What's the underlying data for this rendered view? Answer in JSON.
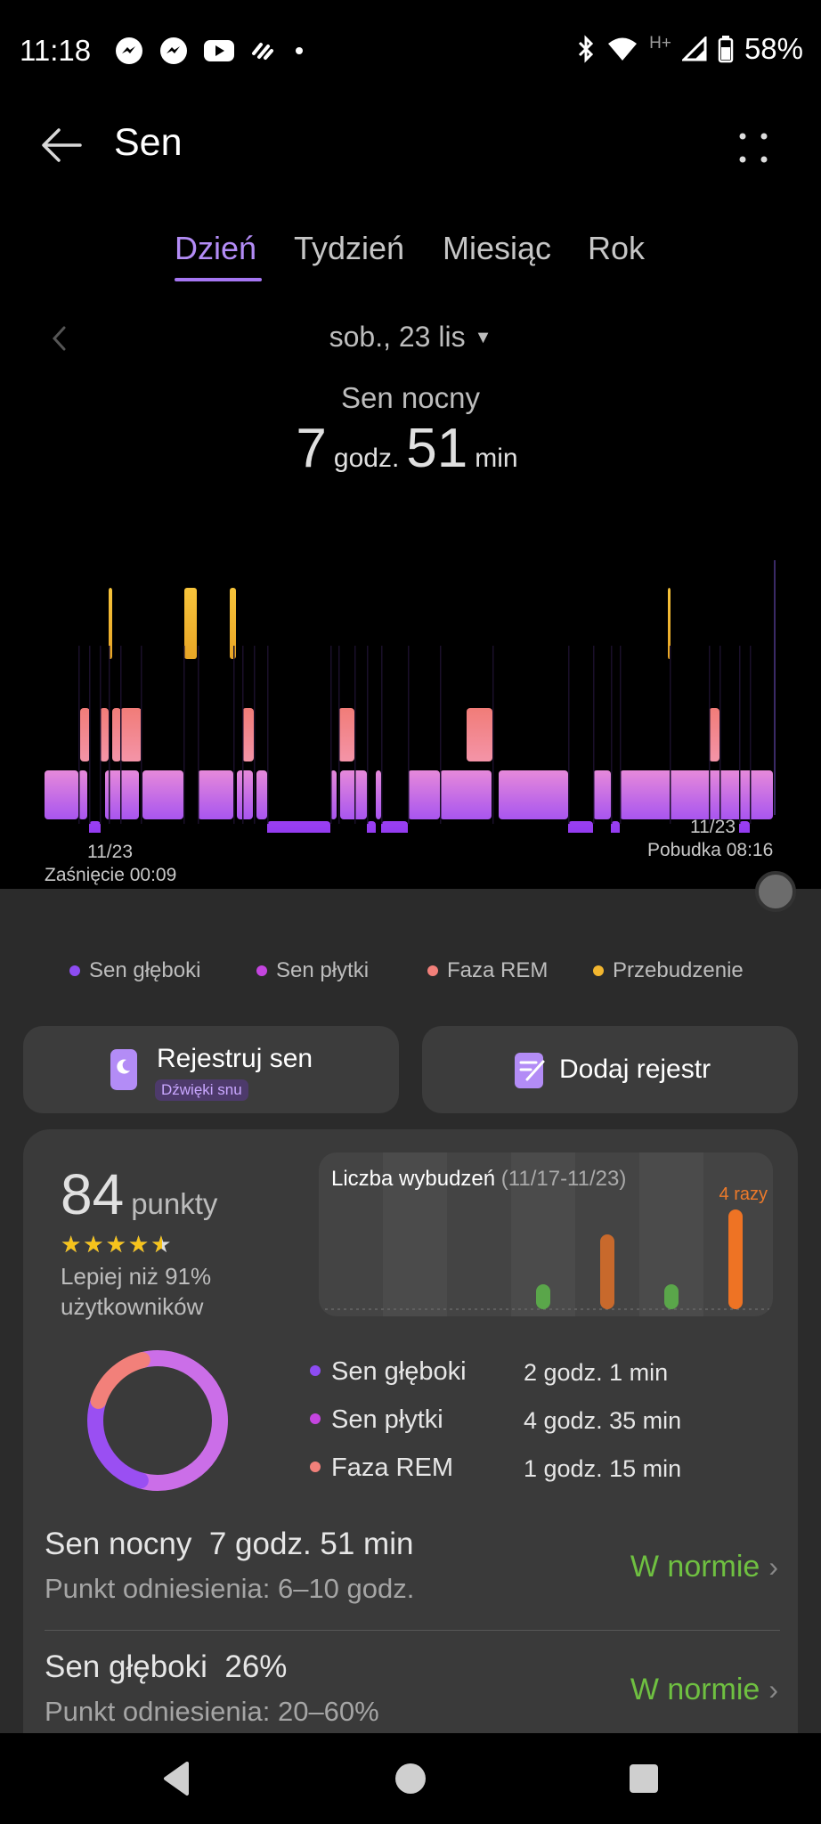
{
  "status_bar": {
    "time": "11:18",
    "battery": "58%",
    "network": "H+",
    "app_icons": [
      "messenger-icon",
      "messenger-icon",
      "youtube-icon",
      "app-icon",
      "dot-icon"
    ]
  },
  "header": {
    "title": "Sen"
  },
  "tabs": [
    {
      "label": "Dzień",
      "active": true
    },
    {
      "label": "Tydzień",
      "active": false
    },
    {
      "label": "Miesiąc",
      "active": false
    },
    {
      "label": "Rok",
      "active": false
    }
  ],
  "date": {
    "label": "sob., 23 lis"
  },
  "summary": {
    "label": "Sen nocny",
    "hours": "7",
    "hours_unit": "godz.",
    "minutes": "51",
    "minutes_unit": "min"
  },
  "chart_data": {
    "type": "hypnogram",
    "start": {
      "date": "11/23",
      "label": "Zaśnięcie 00:09"
    },
    "end": {
      "date": "11/23",
      "label": "Pobudka 08:16"
    },
    "stages": [
      "Sen głęboki",
      "Sen płytki",
      "Faza REM",
      "Przebudzenie"
    ],
    "colors": {
      "Sen głęboki": "#8b3df0",
      "Sen płytki": "#c770e8",
      "Faza REM": "#f3817a",
      "Przebudzenie": "#f2b62f"
    }
  },
  "legend": [
    {
      "label": "Sen głęboki",
      "color": "#8d4cf2"
    },
    {
      "label": "Sen płytki",
      "color": "#c445df"
    },
    {
      "label": "Faza REM",
      "color": "#f2807a"
    },
    {
      "label": "Przebudzenie",
      "color": "#f2b62f"
    }
  ],
  "actions": {
    "record_label": "Rejestruj sen",
    "record_badge": "Dźwięki snu",
    "add_label": "Dodaj rejestr"
  },
  "score": {
    "value": "84",
    "unit": "punkty",
    "stars": 4.5,
    "stars_text": "★★★★★",
    "comparison_line1": "Lepiej niż 91%",
    "comparison_line2": "użytkowników"
  },
  "wakeups": {
    "title": "Liczba wybudzeń",
    "range": "(11/17-11/23)",
    "count_label": "4 razy",
    "values": [
      0,
      0,
      0,
      1,
      3,
      1,
      4
    ],
    "colors": [
      "#5aa64a",
      "#5aa64a",
      "#5aa64a",
      "#5aa64a",
      "#c8692c",
      "#5aa64a",
      "#ee7324"
    ]
  },
  "stage_breakdown": [
    {
      "label": "Sen głęboki",
      "duration": "2 godz. 1 min",
      "color": "#8d4cf2",
      "minutes": 121
    },
    {
      "label": "Sen płytki",
      "duration": "4 godz. 35 min",
      "color": "#c445df",
      "minutes": 275
    },
    {
      "label": "Faza REM",
      "duration": "1 godz. 15 min",
      "color": "#f2807a",
      "minutes": 75
    }
  ],
  "metrics": [
    {
      "title": "Sen nocny",
      "value": "7 godz. 51 min",
      "reference": "Punkt odniesienia: 6–10 godz.",
      "status": "W normie"
    },
    {
      "title": "Sen głęboki",
      "value": "26%",
      "reference": "Punkt odniesienia: 20–60%",
      "status": "W normie"
    }
  ]
}
